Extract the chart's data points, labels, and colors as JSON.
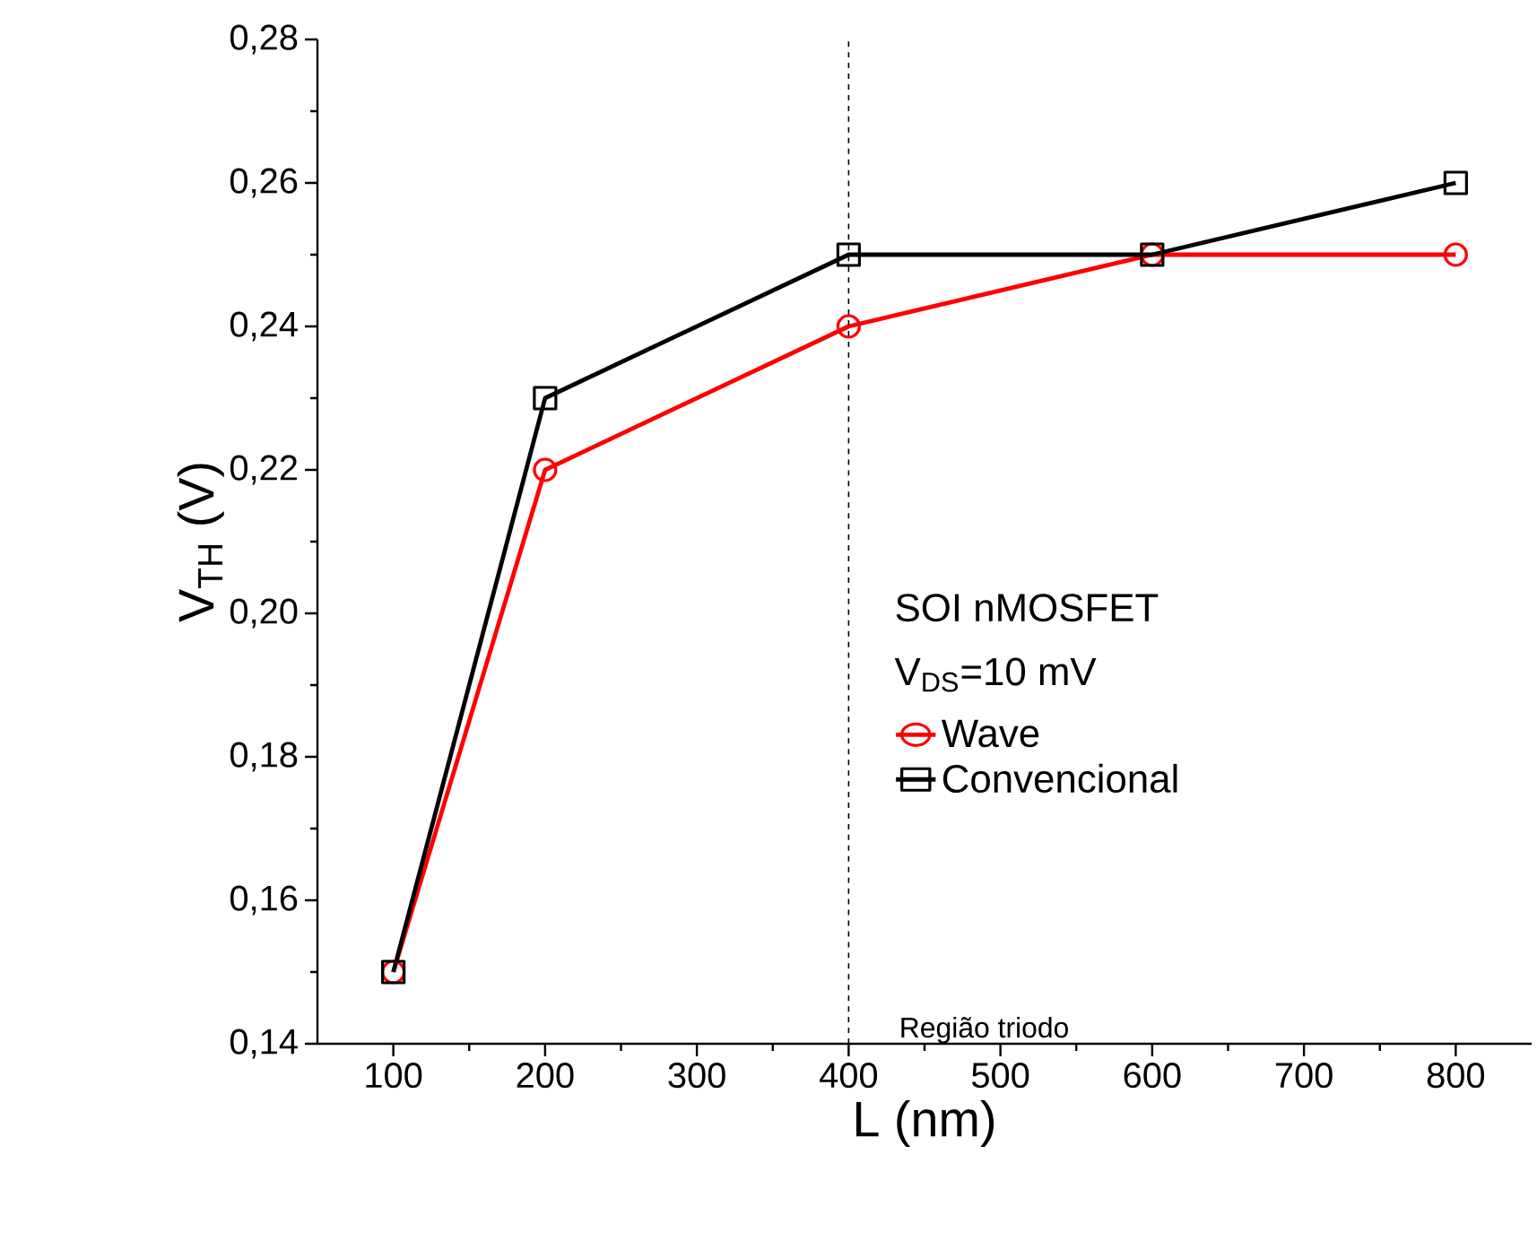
{
  "chart_data": {
    "type": "line",
    "xlabel": "L (nm)",
    "ylabel": "V$_{TH}$ (V)",
    "legend_title": "SOI nMOSFET",
    "annotations": [
      "V$_{DS}$=10 mV"
    ],
    "x": [
      100,
      200,
      400,
      600,
      800
    ],
    "series": [
      {
        "name": "Wave",
        "color": "#ff0000",
        "marker": "circle",
        "values": [
          0.15,
          0.22,
          0.24,
          0.25,
          0.25
        ]
      },
      {
        "name": "Convencional",
        "color": "#000000",
        "marker": "square",
        "values": [
          0.15,
          0.23,
          0.25,
          0.25,
          0.26
        ]
      }
    ],
    "xlim": [
      50,
      850
    ],
    "xticks": [
      100,
      200,
      300,
      400,
      500,
      600,
      700,
      800
    ],
    "ylim": [
      0.14,
      0.28
    ],
    "yticks": [
      {
        "value": 0.14,
        "label": "0,14"
      },
      {
        "value": 0.16,
        "label": "0,16"
      },
      {
        "value": 0.18,
        "label": "0,18"
      },
      {
        "value": 0.2,
        "label": "0,20"
      },
      {
        "value": 0.22,
        "label": "0,22"
      },
      {
        "value": 0.24,
        "label": "0,24"
      },
      {
        "value": 0.26,
        "label": "0,26"
      },
      {
        "value": 0.28,
        "label": "0,28"
      }
    ],
    "ref_lines": [
      {
        "axis": "x",
        "value": 400,
        "label": "Região triodo",
        "color": "#000000",
        "line_style": "dashed"
      }
    ],
    "grid": false,
    "legend": "right",
    "line_style": "solid"
  }
}
